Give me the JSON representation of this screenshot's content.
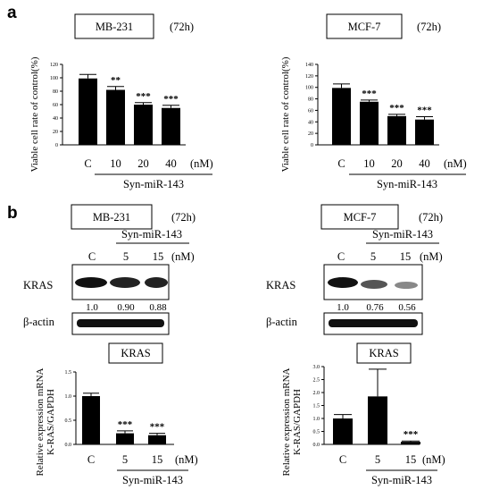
{
  "panels": {
    "a": "a",
    "b": "b"
  },
  "section_a": {
    "left": {
      "cell_line": "MB-231",
      "time": "(72h)"
    },
    "right": {
      "cell_line": "MCF-7",
      "time": "(72h)"
    }
  },
  "section_b": {
    "left": {
      "cell_line": "MB-231",
      "time": "(72h)",
      "treatment": "Syn-miR-143",
      "lanes": [
        "C",
        "5",
        "15",
        "(nM)"
      ],
      "kras_label": "KRAS",
      "actin_label": "β-actin",
      "quant": [
        "1.0",
        "0.90",
        "0.88"
      ],
      "chart_box": "KRAS"
    },
    "right": {
      "cell_line": "MCF-7",
      "time": "(72h)",
      "treatment": "Syn-miR-143",
      "lanes": [
        "C",
        "5",
        "15",
        "(nM)"
      ],
      "kras_label": "KRAS",
      "actin_label": "β-actin",
      "quant": [
        "1.0",
        "0.76",
        "0.56"
      ],
      "chart_box": "KRAS"
    }
  },
  "chart_data": [
    {
      "type": "bar",
      "categories": [
        "C",
        "10",
        "20",
        "40"
      ],
      "unit": "(nM)",
      "treatment": "Syn-miR-143",
      "values": [
        99,
        82,
        60,
        55
      ],
      "errors": [
        6,
        5,
        3,
        4
      ],
      "significance": [
        "",
        "**",
        "***",
        "***"
      ],
      "ylabel": "Viable cell rate of control(%)",
      "ylim": [
        0,
        120
      ],
      "yticks": [
        0,
        20,
        40,
        60,
        80,
        100,
        120
      ]
    },
    {
      "type": "bar",
      "categories": [
        "C",
        "10",
        "20",
        "40"
      ],
      "unit": "(nM)",
      "treatment": "Syn-miR-143",
      "values": [
        99,
        75,
        50,
        44
      ],
      "errors": [
        7,
        3,
        3,
        5
      ],
      "significance": [
        "",
        "***",
        "***",
        "***"
      ],
      "ylabel": "Viable cell rate of control(%)",
      "ylim": [
        0,
        140
      ],
      "yticks": [
        0,
        20,
        40,
        60,
        80,
        100,
        120,
        140
      ]
    },
    {
      "type": "bar",
      "categories": [
        "C",
        "5",
        "15"
      ],
      "unit": "(nM)",
      "treatment": "Syn-miR-143",
      "values": [
        1.0,
        0.23,
        0.19
      ],
      "errors": [
        0.06,
        0.05,
        0.04
      ],
      "significance": [
        "",
        "***",
        "***"
      ],
      "ylabel_line1": "Relative expression mRNA",
      "ylabel_line2": "K-RAS/GAPDH",
      "ylim": [
        0,
        1.5
      ],
      "yticks": [
        0,
        0.5,
        1.0,
        1.5
      ],
      "ytick_labels": [
        "0.0",
        "0.5",
        "1.0",
        "1.5"
      ]
    },
    {
      "type": "bar",
      "categories": [
        "C",
        "5",
        "15"
      ],
      "unit": "(nM)",
      "treatment": "Syn-miR-143",
      "values": [
        1.0,
        1.85,
        0.1
      ],
      "errors": [
        0.15,
        1.05,
        0.03
      ],
      "significance": [
        "",
        "",
        "***"
      ],
      "ylabel_line1": "Relative expression mRNA",
      "ylabel_line2": "K-RAS/GAPDH",
      "ylim": [
        0,
        3.0
      ],
      "yticks": [
        0,
        0.5,
        1.0,
        1.5,
        2.0,
        2.5,
        3.0
      ],
      "ytick_labels": [
        "0.0",
        "0.5",
        "1.0",
        "1.5",
        "2.0",
        "2.5",
        "3.0"
      ]
    }
  ]
}
